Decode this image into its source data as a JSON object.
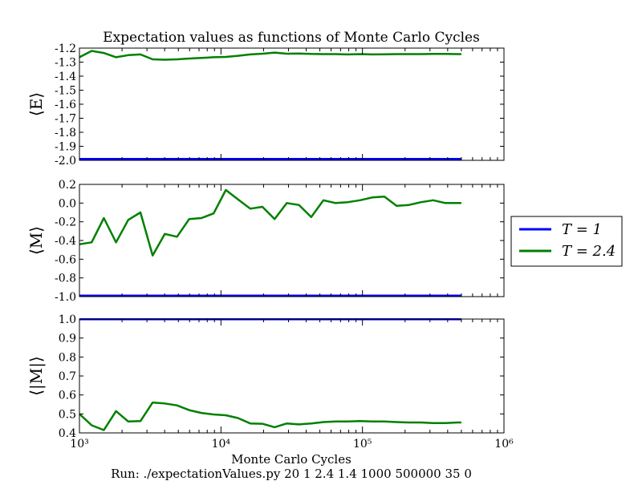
{
  "title": "Expectation values as functions of Monte Carlo Cycles",
  "xlabel": "Monte Carlo Cycles",
  "caption": "Run: ./expectationValues.py 20 1 2.4 1.4 1000 500000 35 0",
  "legend": {
    "placement": "right",
    "entries": [
      {
        "label": "T = 1",
        "color": "#0000ff"
      },
      {
        "label": "T = 2.4",
        "color": "#008000"
      }
    ]
  },
  "chart_data": {
    "type": "line",
    "xscale": "log",
    "xlim": [
      1000,
      1000000
    ],
    "xticks": [
      {
        "value": 1000,
        "label": "10³"
      },
      {
        "value": 10000,
        "label": "10⁴"
      },
      {
        "value": 100000,
        "label": "10⁵"
      },
      {
        "value": 1000000,
        "label": "10⁶"
      }
    ],
    "x": [
      1000,
      1219,
      1487,
      1813,
      2211,
      2697,
      3289,
      4011,
      4892,
      5966,
      7276,
      8874,
      10822,
      13199,
      16097,
      19632,
      23943,
      29200,
      35613,
      43433,
      52971,
      64603,
      78789,
      96090,
      117191,
      142925,
      174310,
      212586,
      259267,
      316198,
      385631,
      470310,
      500000
    ],
    "panels": [
      {
        "ylabel": "⟨E⟩",
        "ylim": [
          -2.0,
          -1.2
        ],
        "yticks": [
          -2.0,
          -1.9,
          -1.8,
          -1.7,
          -1.6,
          -1.5,
          -1.4,
          -1.3,
          -1.2
        ],
        "ytick_labels": [
          "-2.0",
          "-1.9",
          "-1.8",
          "-1.7",
          "-1.6",
          "-1.5",
          "-1.4",
          "-1.3",
          "-1.2"
        ],
        "series": [
          {
            "name": "T = 1",
            "color": "#0000ff",
            "values": [
              -1.99,
              -1.99,
              -1.99,
              -1.99,
              -1.99,
              -1.99,
              -1.99,
              -1.99,
              -1.99,
              -1.99,
              -1.99,
              -1.99,
              -1.99,
              -1.99,
              -1.99,
              -1.99,
              -1.99,
              -1.99,
              -1.99,
              -1.99,
              -1.99,
              -1.99,
              -1.99,
              -1.99,
              -1.99,
              -1.99,
              -1.99,
              -1.99,
              -1.99,
              -1.99,
              -1.99,
              -1.99,
              -1.99
            ]
          },
          {
            "name": "T = 2.4",
            "color": "#008000",
            "values": [
              -1.265,
              -1.22,
              -1.235,
              -1.265,
              -1.25,
              -1.245,
              -1.28,
              -1.283,
              -1.28,
              -1.274,
              -1.27,
              -1.265,
              -1.263,
              -1.255,
              -1.245,
              -1.24,
              -1.232,
              -1.24,
              -1.238,
              -1.242,
              -1.243,
              -1.243,
              -1.245,
              -1.243,
              -1.245,
              -1.244,
              -1.243,
              -1.243,
              -1.243,
              -1.242,
              -1.242,
              -1.243,
              -1.243
            ]
          }
        ]
      },
      {
        "ylabel": "⟨M⟩",
        "ylim": [
          -1.0,
          0.2
        ],
        "yticks": [
          -1.0,
          -0.8,
          -0.6,
          -0.4,
          -0.2,
          0.0,
          0.2
        ],
        "ytick_labels": [
          "-1.0",
          "-0.8",
          "-0.6",
          "-0.4",
          "-0.2",
          "0.0",
          "0.2"
        ],
        "series": [
          {
            "name": "T = 1",
            "color": "#0000ff",
            "values": [
              -0.99,
              -0.99,
              -0.99,
              -0.99,
              -0.99,
              -0.99,
              -0.99,
              -0.99,
              -0.99,
              -0.99,
              -0.99,
              -0.99,
              -0.99,
              -0.99,
              -0.99,
              -0.99,
              -0.99,
              -0.99,
              -0.99,
              -0.99,
              -0.99,
              -0.99,
              -0.99,
              -0.99,
              -0.99,
              -0.99,
              -0.99,
              -0.99,
              -0.99,
              -0.99,
              -0.99,
              -0.99,
              -0.99
            ]
          },
          {
            "name": "T = 2.4",
            "color": "#008000",
            "values": [
              -0.44,
              -0.42,
              -0.16,
              -0.42,
              -0.18,
              -0.1,
              -0.56,
              -0.33,
              -0.36,
              -0.17,
              -0.16,
              -0.11,
              0.14,
              0.04,
              -0.06,
              -0.04,
              -0.17,
              0.0,
              -0.02,
              -0.15,
              0.03,
              0.0,
              0.01,
              0.03,
              0.06,
              0.07,
              -0.03,
              -0.02,
              0.01,
              0.03,
              0.0,
              0.0,
              0.0
            ]
          }
        ]
      },
      {
        "ylabel": "⟨|M|⟩",
        "ylim": [
          0.4,
          1.0
        ],
        "yticks": [
          0.4,
          0.5,
          0.6,
          0.7,
          0.8,
          0.9,
          1.0
        ],
        "ytick_labels": [
          "0.4",
          "0.5",
          "0.6",
          "0.7",
          "0.8",
          "0.9",
          "1.0"
        ],
        "series": [
          {
            "name": "T = 1",
            "color": "#0000ff",
            "values": [
              0.999,
              0.999,
              0.999,
              0.999,
              0.999,
              0.999,
              0.999,
              0.999,
              0.999,
              0.999,
              0.999,
              0.999,
              0.999,
              0.999,
              0.999,
              0.999,
              0.999,
              0.999,
              0.999,
              0.999,
              0.999,
              0.999,
              0.999,
              0.999,
              0.999,
              0.999,
              0.999,
              0.999,
              0.999,
              0.999,
              0.999,
              0.999,
              0.999
            ]
          },
          {
            "name": "T = 2.4",
            "color": "#008000",
            "values": [
              0.5,
              0.44,
              0.415,
              0.515,
              0.46,
              0.462,
              0.56,
              0.555,
              0.545,
              0.52,
              0.505,
              0.497,
              0.493,
              0.478,
              0.45,
              0.448,
              0.43,
              0.45,
              0.445,
              0.45,
              0.457,
              0.46,
              0.46,
              0.462,
              0.46,
              0.46,
              0.457,
              0.455,
              0.455,
              0.452,
              0.452,
              0.455,
              0.455
            ]
          }
        ]
      }
    ]
  }
}
